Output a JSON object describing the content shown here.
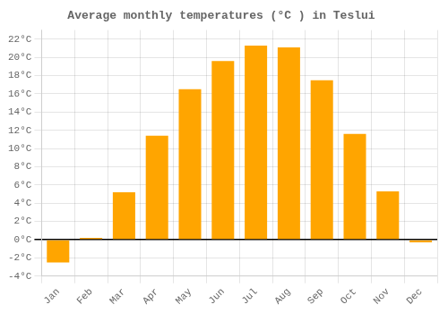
{
  "chart_data": {
    "type": "bar",
    "title": "Average monthly temperatures (°C ) in Teslui",
    "categories": [
      "Jan",
      "Feb",
      "Mar",
      "Apr",
      "May",
      "Jun",
      "Jul",
      "Aug",
      "Sep",
      "Oct",
      "Nov",
      "Dec"
    ],
    "values": [
      -2.5,
      0.2,
      5.2,
      11.4,
      16.5,
      19.6,
      21.3,
      21.1,
      17.5,
      11.6,
      5.3,
      -0.3
    ],
    "color": "#FFA500",
    "ylim": [
      -4,
      23
    ],
    "yticks": [
      {
        "value": -4,
        "label": "-4°C"
      },
      {
        "value": -2,
        "label": "-2°C"
      },
      {
        "value": 0,
        "label": "0°C"
      },
      {
        "value": 2,
        "label": "2°C"
      },
      {
        "value": 4,
        "label": "4°C"
      },
      {
        "value": 6,
        "label": "6°C"
      },
      {
        "value": 8,
        "label": "8°C"
      },
      {
        "value": 10,
        "label": "10°C"
      },
      {
        "value": 12,
        "label": "12°C"
      },
      {
        "value": 14,
        "label": "14°C"
      },
      {
        "value": 16,
        "label": "16°C"
      },
      {
        "value": 18,
        "label": "18°C"
      },
      {
        "value": 20,
        "label": "20°C"
      },
      {
        "value": 22,
        "label": "22°C"
      }
    ],
    "grid": true
  }
}
